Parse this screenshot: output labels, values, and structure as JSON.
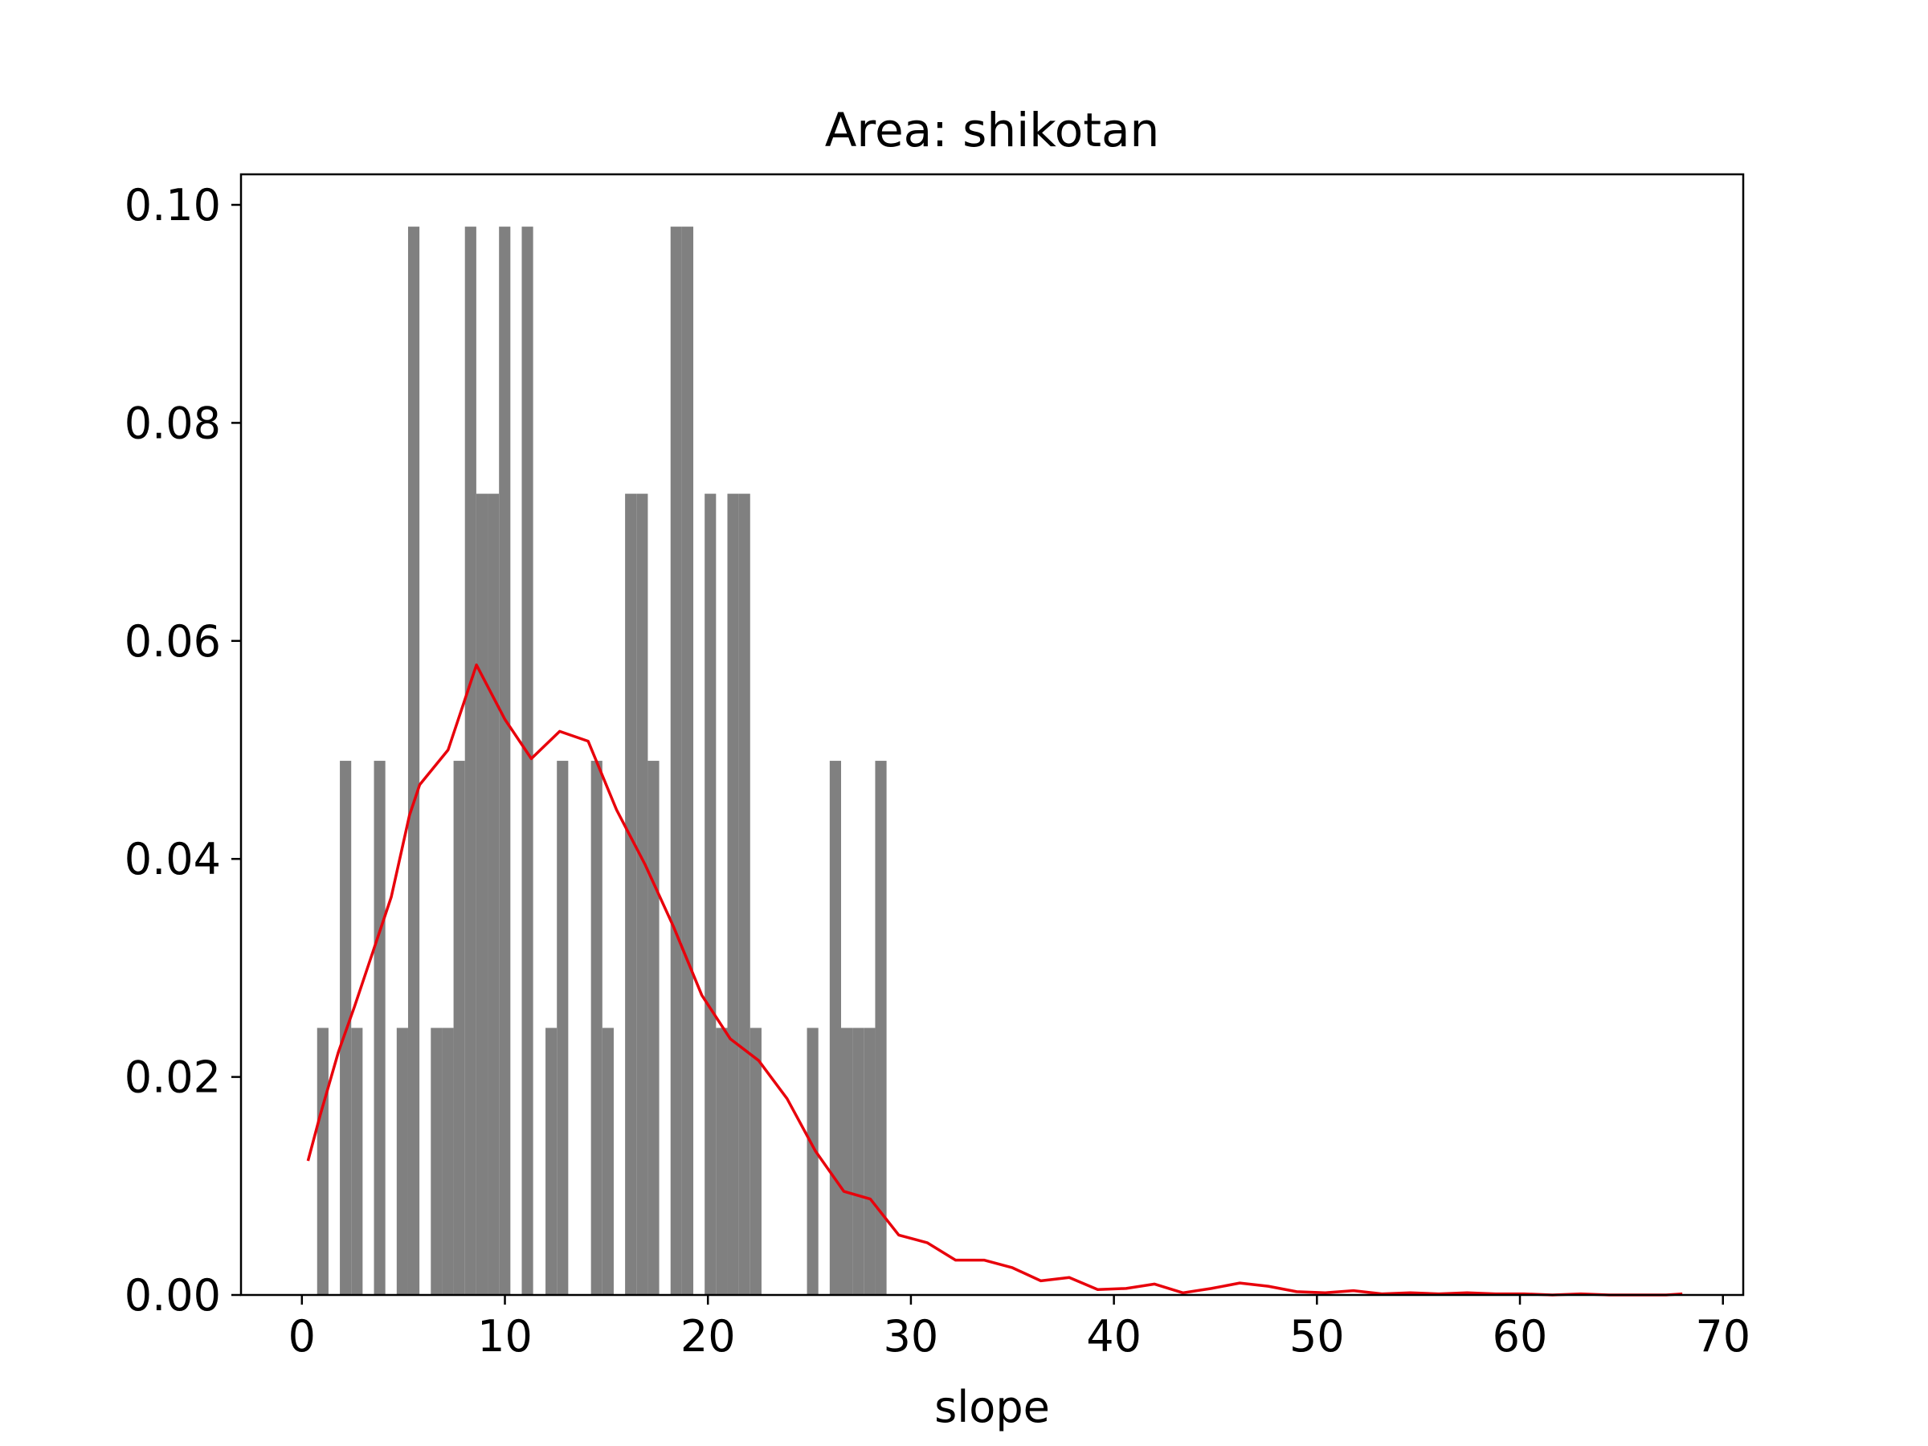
{
  "chart_data": {
    "type": "bar",
    "title": "Area: shikotan",
    "xlabel": "slope",
    "ylabel": "",
    "xlim": [
      -3,
      71
    ],
    "ylim": [
      0,
      0.1028
    ],
    "grid": false,
    "x_ticks": [
      0,
      10,
      20,
      30,
      40,
      50,
      60,
      70
    ],
    "x_tick_labels": [
      "0",
      "10",
      "20",
      "30",
      "40",
      "50",
      "60",
      "70"
    ],
    "y_ticks": [
      0.0,
      0.02,
      0.04,
      0.06,
      0.08,
      0.1
    ],
    "y_tick_labels": [
      "0.00",
      "0.02",
      "0.04",
      "0.06",
      "0.08",
      "0.10"
    ],
    "histogram": {
      "color": "#808080",
      "bin_width": 0.56,
      "bins": [
        [
          0.75,
          0.0245
        ],
        [
          1.87,
          0.049
        ],
        [
          2.43,
          0.0245
        ],
        [
          3.55,
          0.049
        ],
        [
          4.67,
          0.0245
        ],
        [
          5.23,
          0.098
        ],
        [
          6.35,
          0.0245
        ],
        [
          6.91,
          0.0245
        ],
        [
          7.47,
          0.049
        ],
        [
          8.03,
          0.098
        ],
        [
          8.59,
          0.0735
        ],
        [
          9.15,
          0.0735
        ],
        [
          9.71,
          0.098
        ],
        [
          10.83,
          0.098
        ],
        [
          12.0,
          0.0245
        ],
        [
          12.56,
          0.049
        ],
        [
          14.24,
          0.049
        ],
        [
          14.8,
          0.0245
        ],
        [
          15.92,
          0.0735
        ],
        [
          16.48,
          0.0735
        ],
        [
          17.04,
          0.049
        ],
        [
          18.16,
          0.098
        ],
        [
          18.72,
          0.098
        ],
        [
          19.84,
          0.0735
        ],
        [
          20.4,
          0.0245
        ],
        [
          20.96,
          0.0735
        ],
        [
          21.52,
          0.0735
        ],
        [
          22.08,
          0.0245
        ],
        [
          24.88,
          0.0245
        ],
        [
          26.0,
          0.049
        ],
        [
          26.56,
          0.0245
        ],
        [
          27.12,
          0.0245
        ],
        [
          27.68,
          0.0245
        ],
        [
          28.24,
          0.049
        ]
      ]
    },
    "series": [
      {
        "type": "line",
        "color": "#e8000b",
        "x": [
          0.3,
          0.9,
          1.8,
          2.6,
          3.5,
          4.4,
          5.3,
          5.8,
          7.2,
          8.6,
          10.0,
          11.3,
          12.7,
          14.1,
          15.5,
          16.9,
          18.3,
          19.7,
          21.1,
          22.5,
          23.9,
          25.3,
          26.7,
          28.0,
          29.4,
          30.8,
          32.2,
          33.6,
          35.0,
          36.4,
          37.8,
          39.2,
          40.6,
          42.0,
          43.4,
          44.8,
          46.2,
          47.6,
          49.0,
          50.4,
          51.8,
          53.2,
          54.6,
          56.0,
          57.4,
          58.8,
          60.2,
          61.6,
          63.0,
          64.4,
          65.8,
          67.2,
          68.0
        ],
        "y": [
          0.0123,
          0.0165,
          0.0223,
          0.0265,
          0.0315,
          0.0365,
          0.044,
          0.0468,
          0.05,
          0.0578,
          0.0528,
          0.0492,
          0.0517,
          0.0508,
          0.0445,
          0.0395,
          0.0338,
          0.0275,
          0.0235,
          0.0215,
          0.018,
          0.0132,
          0.0095,
          0.0088,
          0.0055,
          0.0048,
          0.0032,
          0.0032,
          0.0025,
          0.0013,
          0.0016,
          0.0005,
          0.0006,
          0.001,
          0.0002,
          0.0006,
          0.0011,
          0.0008,
          0.0003,
          0.0002,
          0.0004,
          0.0001,
          0.0002,
          0.0001,
          0.0002,
          0.0001,
          0.0001,
          0.0,
          0.0001,
          0.0,
          0.0,
          0.0,
          0.0001
        ]
      }
    ]
  }
}
